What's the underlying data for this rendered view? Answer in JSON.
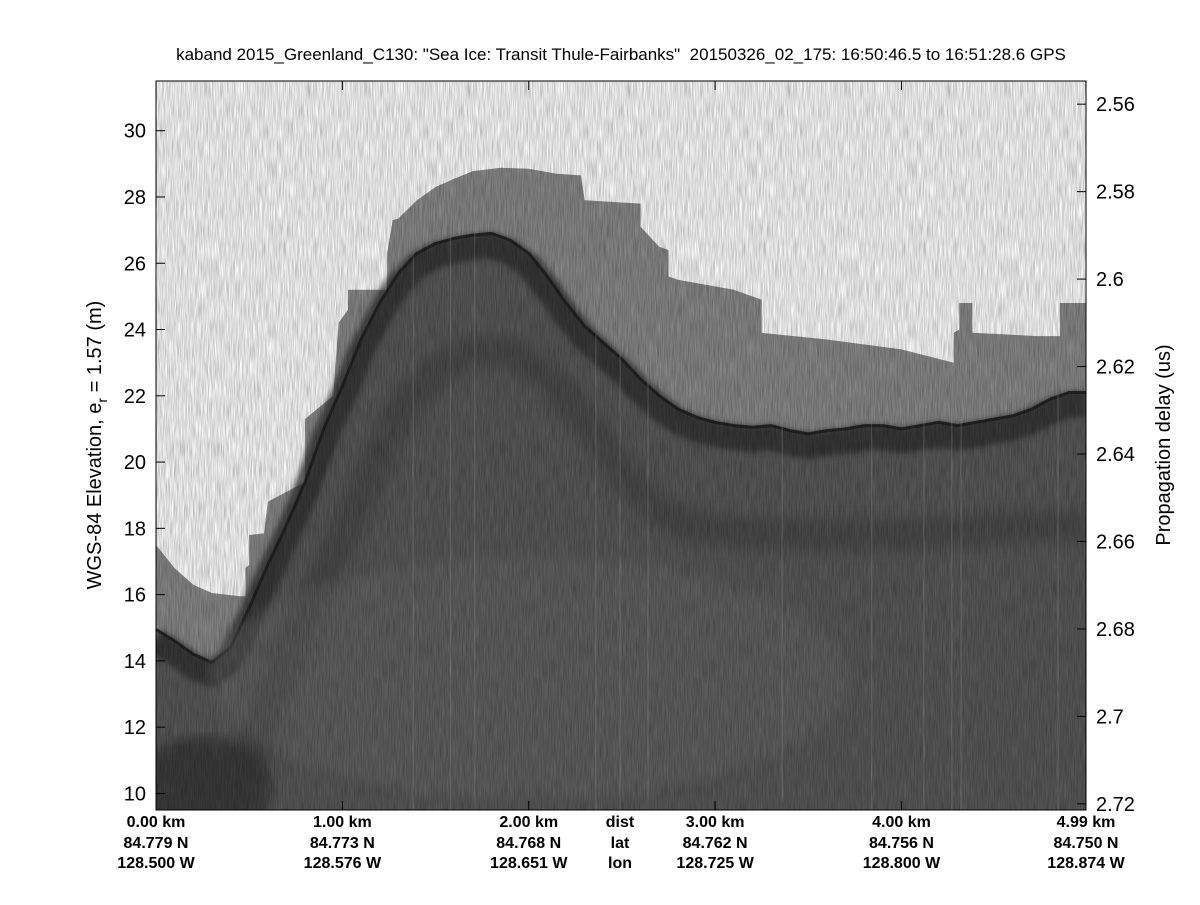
{
  "chart_data": {
    "type": "heatmap",
    "title": "kaband 2015_Greenland_C130: \"Sea Ice: Transit Thule-Fairbanks\"  20150326_02_175: 16:50:46.5 to 16:51:28.6 GPS",
    "ylabel_main": "WGS-84 Elevation, e",
    "ylabel_sub": "r",
    "ylabel_suffix": " = 1.57 (m)",
    "y2label": "Propagation delay (us)",
    "colormap": "gray",
    "xlim": [
      0,
      4.99
    ],
    "ylim": [
      9.5,
      31.5
    ],
    "y2lim": [
      2.5547,
      2.7214
    ],
    "y_ticks": [
      10,
      12,
      14,
      16,
      18,
      20,
      22,
      24,
      26,
      28,
      30
    ],
    "y2_ticks": [
      "2.56",
      "2.58",
      "2.6",
      "2.62",
      "2.64",
      "2.66",
      "2.68",
      "2.7",
      "2.72"
    ],
    "x_row_labels": {
      "dist": "dist",
      "lat": "lat",
      "lon": "lon"
    },
    "x_ticks": [
      {
        "km": 0.0,
        "dist": "0.00 km",
        "lat": "84.779 N",
        "lon": "128.500 W"
      },
      {
        "km": 1.0,
        "dist": "1.00 km",
        "lat": "84.773 N",
        "lon": "128.576 W"
      },
      {
        "km": 2.0,
        "dist": "2.00 km",
        "lat": "84.768 N",
        "lon": "128.651 W"
      },
      {
        "km": 3.0,
        "dist": "3.00 km",
        "lat": "84.762 N",
        "lon": "128.725 W"
      },
      {
        "km": 4.0,
        "dist": "4.00 km",
        "lat": "84.756 N",
        "lon": "128.800 W"
      },
      {
        "km": 4.99,
        "dist": "4.99 km",
        "lat": "84.750 N",
        "lon": "128.874 W"
      }
    ],
    "noise_floor_top": [
      [
        0.0,
        17.5
      ],
      [
        0.1,
        16.8
      ],
      [
        0.2,
        16.3
      ],
      [
        0.3,
        16.05
      ],
      [
        0.45,
        15.95
      ],
      [
        0.48,
        15.95
      ],
      [
        0.48,
        16.8
      ],
      [
        0.5,
        16.9
      ],
      [
        0.5,
        17.8
      ],
      [
        0.58,
        17.85
      ],
      [
        0.6,
        18.8
      ],
      [
        0.8,
        19.4
      ],
      [
        0.8,
        21.3
      ],
      [
        0.95,
        22.0
      ],
      [
        0.98,
        24.2
      ],
      [
        1.03,
        24.6
      ],
      [
        1.03,
        25.2
      ],
      [
        1.24,
        25.2
      ],
      [
        1.24,
        26.3
      ],
      [
        1.27,
        27.3
      ],
      [
        1.3,
        27.35
      ],
      [
        1.4,
        27.9
      ],
      [
        1.5,
        28.3
      ],
      [
        1.6,
        28.55
      ],
      [
        1.7,
        28.78
      ],
      [
        1.85,
        28.88
      ],
      [
        2.0,
        28.85
      ],
      [
        2.15,
        28.7
      ],
      [
        2.28,
        28.65
      ],
      [
        2.3,
        27.9
      ],
      [
        2.6,
        27.8
      ],
      [
        2.6,
        27.1
      ],
      [
        2.7,
        26.5
      ],
      [
        2.75,
        26.4
      ],
      [
        2.75,
        25.6
      ],
      [
        2.8,
        25.5
      ],
      [
        3.1,
        25.2
      ],
      [
        3.25,
        24.9
      ],
      [
        3.25,
        23.9
      ],
      [
        3.6,
        23.7
      ],
      [
        4.0,
        23.4
      ],
      [
        4.28,
        23.0
      ],
      [
        4.28,
        23.9
      ],
      [
        4.31,
        24.0
      ],
      [
        4.31,
        24.8
      ],
      [
        4.38,
        24.8
      ],
      [
        4.38,
        23.9
      ],
      [
        4.73,
        23.8
      ],
      [
        4.85,
        23.8
      ],
      [
        4.85,
        24.8
      ],
      [
        4.99,
        24.8
      ]
    ],
    "surface": [
      [
        0.0,
        14.95
      ],
      [
        0.1,
        14.6
      ],
      [
        0.2,
        14.2
      ],
      [
        0.3,
        13.95
      ],
      [
        0.4,
        14.4
      ],
      [
        0.5,
        15.6
      ],
      [
        0.6,
        16.9
      ],
      [
        0.7,
        18.1
      ],
      [
        0.8,
        19.4
      ],
      [
        0.9,
        21.0
      ],
      [
        1.0,
        22.3
      ],
      [
        1.1,
        23.7
      ],
      [
        1.2,
        24.8
      ],
      [
        1.3,
        25.7
      ],
      [
        1.4,
        26.3
      ],
      [
        1.5,
        26.6
      ],
      [
        1.6,
        26.75
      ],
      [
        1.7,
        26.85
      ],
      [
        1.8,
        26.9
      ],
      [
        1.9,
        26.7
      ],
      [
        2.0,
        26.3
      ],
      [
        2.1,
        25.6
      ],
      [
        2.2,
        24.8
      ],
      [
        2.3,
        24.1
      ],
      [
        2.4,
        23.6
      ],
      [
        2.5,
        23.1
      ],
      [
        2.6,
        22.5
      ],
      [
        2.7,
        22.0
      ],
      [
        2.8,
        21.6
      ],
      [
        2.9,
        21.35
      ],
      [
        3.0,
        21.2
      ],
      [
        3.1,
        21.1
      ],
      [
        3.2,
        21.05
      ],
      [
        3.3,
        21.1
      ],
      [
        3.4,
        20.95
      ],
      [
        3.5,
        20.85
      ],
      [
        3.6,
        20.95
      ],
      [
        3.7,
        21.0
      ],
      [
        3.8,
        21.1
      ],
      [
        3.9,
        21.1
      ],
      [
        4.0,
        21.0
      ],
      [
        4.1,
        21.1
      ],
      [
        4.2,
        21.2
      ],
      [
        4.3,
        21.1
      ],
      [
        4.4,
        21.2
      ],
      [
        4.5,
        21.3
      ],
      [
        4.6,
        21.4
      ],
      [
        4.7,
        21.6
      ],
      [
        4.8,
        21.9
      ],
      [
        4.9,
        22.1
      ],
      [
        4.99,
        22.1
      ]
    ],
    "internal_layer": [
      [
        0.5,
        11.0
      ],
      [
        0.7,
        14.2
      ],
      [
        0.9,
        16.5
      ],
      [
        1.1,
        19.0
      ],
      [
        1.3,
        21.4
      ],
      [
        1.5,
        22.8
      ],
      [
        1.7,
        23.35
      ],
      [
        1.9,
        23.3
      ],
      [
        2.1,
        22.6
      ],
      [
        2.3,
        21.3
      ],
      [
        2.5,
        19.7
      ],
      [
        2.7,
        18.5
      ],
      [
        2.9,
        18.0
      ],
      [
        3.2,
        17.85
      ],
      [
        3.6,
        17.8
      ],
      [
        4.0,
        17.8
      ],
      [
        4.5,
        18.0
      ],
      [
        4.99,
        18.1
      ]
    ],
    "vertical_streaks_km": [
      1.38,
      1.58,
      1.71,
      2.36,
      2.49,
      2.64,
      3.36,
      3.84,
      4.12,
      4.27,
      4.32,
      4.84
    ]
  }
}
